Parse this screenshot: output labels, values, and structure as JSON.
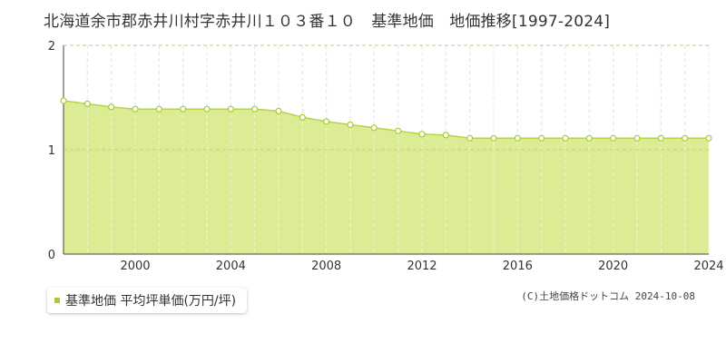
{
  "title": "北海道余市郡赤井川村字赤井川１０３番１０　基準地価　地価推移[1997-2024]",
  "legend_label": "基準地価 平均坪単価(万円/坪)",
  "credit": "(C)土地価格ドットコム 2024-10-08",
  "colors": {
    "fill": "#dcec94",
    "line": "#b5d548",
    "marker": "#a8cc2e",
    "grid": "#cccccc"
  },
  "chart_data": {
    "type": "area",
    "x": [
      1997,
      1998,
      1999,
      2000,
      2001,
      2002,
      2003,
      2004,
      2005,
      2006,
      2007,
      2008,
      2009,
      2010,
      2011,
      2012,
      2013,
      2014,
      2015,
      2016,
      2017,
      2018,
      2019,
      2020,
      2021,
      2022,
      2023,
      2024
    ],
    "series": [
      {
        "name": "基準地価 平均坪単価(万円/坪)",
        "values": [
          1.47,
          1.44,
          1.41,
          1.39,
          1.39,
          1.39,
          1.39,
          1.39,
          1.39,
          1.37,
          1.31,
          1.27,
          1.24,
          1.21,
          1.18,
          1.15,
          1.14,
          1.11,
          1.11,
          1.11,
          1.11,
          1.11,
          1.11,
          1.11,
          1.11,
          1.11,
          1.11,
          1.11
        ]
      }
    ],
    "xticks": [
      "2000",
      "2004",
      "2008",
      "2012",
      "2016",
      "2020",
      "2024"
    ],
    "xtick_values": [
      2000,
      2004,
      2008,
      2012,
      2016,
      2020,
      2024
    ],
    "yticks": [
      "0",
      "1",
      "2"
    ],
    "ytick_values": [
      0,
      1,
      2
    ],
    "xlim": [
      1997,
      2024
    ],
    "ylim": [
      0,
      2
    ],
    "grid": true,
    "xlabel": "",
    "ylabel": ""
  }
}
